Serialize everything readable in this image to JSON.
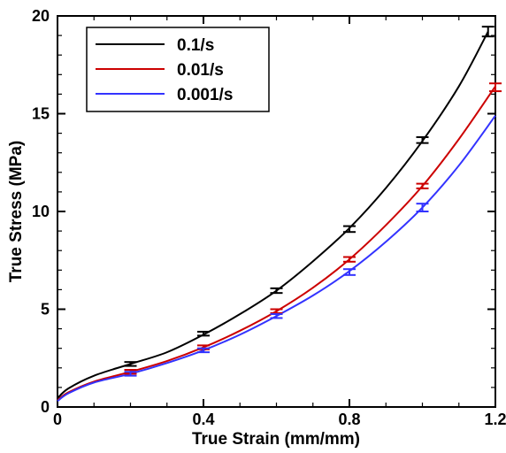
{
  "chart_data": {
    "type": "line",
    "title": "",
    "xlabel": "True Strain (mm/mm)",
    "ylabel": "True Stress (MPa)",
    "xlim": [
      0,
      1.2
    ],
    "ylim": [
      0,
      20
    ],
    "x_ticks": [
      0,
      0.4,
      0.8,
      1.2
    ],
    "x_tick_labels": [
      "0",
      "0.4",
      "0.8",
      "1.2"
    ],
    "y_ticks": [
      0,
      5,
      10,
      15,
      20
    ],
    "y_tick_labels": [
      "0",
      "5",
      "10",
      "15",
      "20"
    ],
    "grid": false,
    "legend_position": "top-left",
    "series": [
      {
        "name": "0.1/s",
        "color": "#000000",
        "curve": [
          [
            0,
            0.45
          ],
          [
            0.03,
            0.95
          ],
          [
            0.1,
            1.6
          ],
          [
            0.2,
            2.2
          ],
          [
            0.3,
            2.8
          ],
          [
            0.4,
            3.7
          ],
          [
            0.5,
            4.75
          ],
          [
            0.6,
            5.95
          ],
          [
            0.7,
            7.45
          ],
          [
            0.8,
            9.15
          ],
          [
            0.9,
            11.2
          ],
          [
            1.0,
            13.6
          ],
          [
            1.1,
            16.4
          ],
          [
            1.18,
            19.2
          ]
        ],
        "error_bars": [
          {
            "x": 0.2,
            "y": 2.2,
            "err": 0.1
          },
          {
            "x": 0.4,
            "y": 3.75,
            "err": 0.1
          },
          {
            "x": 0.6,
            "y": 5.95,
            "err": 0.12
          },
          {
            "x": 0.8,
            "y": 9.1,
            "err": 0.15
          },
          {
            "x": 1.0,
            "y": 13.65,
            "err": 0.15
          },
          {
            "x": 1.18,
            "y": 19.2,
            "err": 0.25
          }
        ]
      },
      {
        "name": "0.01/s",
        "color": "#cc0000",
        "curve": [
          [
            0,
            0.35
          ],
          [
            0.03,
            0.75
          ],
          [
            0.1,
            1.3
          ],
          [
            0.2,
            1.8
          ],
          [
            0.3,
            2.35
          ],
          [
            0.4,
            3.05
          ],
          [
            0.5,
            3.9
          ],
          [
            0.6,
            4.9
          ],
          [
            0.7,
            6.1
          ],
          [
            0.8,
            7.55
          ],
          [
            0.9,
            9.3
          ],
          [
            1.0,
            11.3
          ],
          [
            1.1,
            13.7
          ],
          [
            1.2,
            16.4
          ]
        ],
        "error_bars": [
          {
            "x": 0.2,
            "y": 1.8,
            "err": 0.1
          },
          {
            "x": 0.4,
            "y": 3.05,
            "err": 0.1
          },
          {
            "x": 0.6,
            "y": 4.9,
            "err": 0.1
          },
          {
            "x": 0.8,
            "y": 7.55,
            "err": 0.12
          },
          {
            "x": 1.0,
            "y": 11.3,
            "err": 0.12
          },
          {
            "x": 1.2,
            "y": 16.35,
            "err": 0.2
          }
        ]
      },
      {
        "name": "0.001/s",
        "color": "#3333ff",
        "curve": [
          [
            0,
            0.3
          ],
          [
            0.03,
            0.7
          ],
          [
            0.1,
            1.25
          ],
          [
            0.2,
            1.7
          ],
          [
            0.3,
            2.25
          ],
          [
            0.4,
            2.9
          ],
          [
            0.5,
            3.7
          ],
          [
            0.6,
            4.65
          ],
          [
            0.7,
            5.7
          ],
          [
            0.8,
            6.95
          ],
          [
            0.9,
            8.45
          ],
          [
            1.0,
            10.2
          ],
          [
            1.1,
            12.35
          ],
          [
            1.2,
            14.9
          ]
        ],
        "error_bars": [
          {
            "x": 0.2,
            "y": 1.7,
            "err": 0.1
          },
          {
            "x": 0.4,
            "y": 2.9,
            "err": 0.1
          },
          {
            "x": 0.6,
            "y": 4.65,
            "err": 0.1
          },
          {
            "x": 0.8,
            "y": 6.9,
            "err": 0.15
          },
          {
            "x": 1.0,
            "y": 10.2,
            "err": 0.2
          }
        ]
      }
    ]
  }
}
